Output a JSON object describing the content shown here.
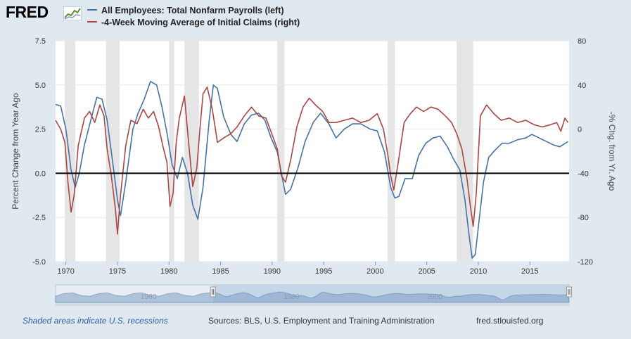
{
  "brand": {
    "name": "FRED"
  },
  "colors": {
    "series1": "#4572a7",
    "series2": "#aa4643",
    "plot_bg": "#ffffff",
    "page_bg": "#e1e9f0",
    "recession": "#e5e5e5"
  },
  "footer": {
    "note": "Shaded areas indicate U.S. recessions",
    "sources": "Sources: BLS, U.S. Employment and Training Administration",
    "url": "fred.stlouisfed.org"
  },
  "chart_data": {
    "type": "line",
    "title": "",
    "xlabel": "",
    "ylabel": "Percent Change from Year Ago",
    "y2label": "-% Chg. from Yr. Ago",
    "xlim": [
      1969,
      2018.8
    ],
    "ylim": [
      -5.0,
      7.5
    ],
    "y2lim": [
      -120,
      80
    ],
    "yticks": [
      "7.5",
      "5.0",
      "2.5",
      "0.0",
      "-2.5",
      "-5.0"
    ],
    "yticks_right": [
      "80",
      "40",
      "0",
      "-40",
      "-80",
      "-120"
    ],
    "xticks": [
      "1970",
      "1975",
      "1980",
      "1985",
      "1990",
      "1995",
      "2000",
      "2005",
      "2010",
      "2015"
    ],
    "navigator_labels": [
      "1960",
      "1980",
      "2000"
    ],
    "recessions": [
      [
        1969.9,
        1970.9
      ],
      [
        1973.9,
        1975.2
      ],
      [
        1980.0,
        1980.5
      ],
      [
        1981.5,
        1982.9
      ],
      [
        1990.5,
        1991.2
      ],
      [
        2001.2,
        2001.9
      ],
      [
        2007.9,
        2009.5
      ]
    ],
    "zero_line": 0,
    "series": [
      {
        "name": "All Employees: Total Nonfarm Payrolls (left)",
        "axis": "left",
        "x": [
          1969.0,
          1969.5,
          1970.0,
          1970.5,
          1970.9,
          1971.3,
          1971.8,
          1972.5,
          1973.0,
          1973.5,
          1974.0,
          1974.5,
          1975.0,
          1975.3,
          1975.8,
          1976.5,
          1977.0,
          1977.6,
          1978.2,
          1978.8,
          1979.3,
          1979.8,
          1980.3,
          1980.8,
          1981.3,
          1981.8,
          1982.3,
          1982.8,
          1983.3,
          1983.9,
          1984.3,
          1984.7,
          1985.3,
          1986.0,
          1986.6,
          1987.3,
          1988.0,
          1988.7,
          1989.3,
          1989.9,
          1990.5,
          1990.9,
          1991.3,
          1991.8,
          1992.5,
          1993.2,
          1994.0,
          1994.7,
          1995.5,
          1996.2,
          1997.0,
          1997.8,
          1998.6,
          1999.5,
          2000.2,
          2000.9,
          2001.5,
          2001.9,
          2002.3,
          2002.9,
          2003.6,
          2004.2,
          2004.9,
          2005.6,
          2006.3,
          2007.0,
          2007.6,
          2008.2,
          2008.7,
          2009.1,
          2009.4,
          2009.7,
          2010.1,
          2010.5,
          2011.0,
          2011.6,
          2012.3,
          2013.0,
          2013.8,
          2014.6,
          2015.2,
          2015.9,
          2016.6,
          2017.3,
          2017.9,
          2018.7
        ],
        "values": [
          3.9,
          3.8,
          2.5,
          0.2,
          -0.8,
          0.0,
          1.6,
          3.2,
          4.3,
          4.2,
          3.0,
          0.8,
          -1.5,
          -2.4,
          -0.5,
          2.5,
          3.4,
          4.2,
          5.2,
          5.0,
          3.8,
          2.3,
          0.5,
          -0.3,
          0.9,
          0.0,
          -1.8,
          -2.6,
          -0.8,
          3.0,
          5.0,
          4.8,
          3.2,
          2.2,
          1.8,
          2.8,
          3.3,
          3.4,
          3.0,
          2.0,
          1.2,
          0.0,
          -1.2,
          -0.9,
          0.3,
          1.8,
          2.9,
          3.4,
          2.8,
          2.0,
          2.5,
          2.8,
          2.8,
          2.5,
          2.4,
          1.2,
          -0.8,
          -1.4,
          -1.3,
          -0.3,
          -0.3,
          1.0,
          1.7,
          2.0,
          2.1,
          1.5,
          0.8,
          0.2,
          -1.5,
          -3.5,
          -4.8,
          -4.6,
          -2.5,
          -0.5,
          0.9,
          1.3,
          1.7,
          1.7,
          1.9,
          2.0,
          2.2,
          2.0,
          1.8,
          1.6,
          1.5,
          1.8
        ]
      },
      {
        "name": "-4-Week Moving Average of Initial Claims (right)",
        "axis": "right",
        "x": [
          1969.0,
          1969.5,
          1969.9,
          1970.2,
          1970.5,
          1970.8,
          1971.2,
          1971.8,
          1972.3,
          1972.8,
          1973.3,
          1973.7,
          1974.0,
          1974.4,
          1974.8,
          1975.0,
          1975.3,
          1975.8,
          1976.3,
          1976.9,
          1977.5,
          1978.0,
          1978.5,
          1979.0,
          1979.4,
          1979.8,
          1980.1,
          1980.4,
          1980.7,
          1981.0,
          1981.5,
          1981.9,
          1982.3,
          1982.7,
          1983.0,
          1983.3,
          1983.7,
          1984.2,
          1984.7,
          1985.3,
          1986.0,
          1986.6,
          1987.3,
          1988.0,
          1988.7,
          1989.4,
          1990.0,
          1990.5,
          1990.9,
          1991.3,
          1991.8,
          1992.4,
          1993.0,
          1993.6,
          1994.2,
          1994.9,
          1995.5,
          1996.2,
          1997.0,
          1997.8,
          1998.6,
          1999.4,
          2000.2,
          2000.8,
          2001.2,
          2001.5,
          2001.8,
          2002.2,
          2002.8,
          2003.4,
          2004.0,
          2004.7,
          2005.4,
          2006.1,
          2006.8,
          2007.4,
          2007.9,
          2008.4,
          2008.9,
          2009.2,
          2009.5,
          2009.8,
          2010.2,
          2010.8,
          2011.5,
          2012.2,
          2013.0,
          2013.8,
          2014.6,
          2015.4,
          2016.2,
          2017.0,
          2017.6,
          2018.0,
          2018.4,
          2018.7
        ],
        "values": [
          8,
          0,
          -12,
          -48,
          -75,
          -60,
          -15,
          10,
          16,
          6,
          22,
          12,
          -18,
          -42,
          -72,
          -95,
          -60,
          -15,
          8,
          5,
          18,
          10,
          16,
          2,
          -15,
          -30,
          -70,
          -58,
          -12,
          10,
          30,
          -12,
          -52,
          -35,
          0,
          32,
          38,
          18,
          -12,
          -8,
          -4,
          2,
          12,
          20,
          12,
          10,
          -5,
          -18,
          -42,
          -48,
          -28,
          2,
          20,
          28,
          22,
          16,
          6,
          6,
          8,
          10,
          6,
          8,
          14,
          0,
          -22,
          -42,
          -55,
          -32,
          6,
          14,
          20,
          16,
          20,
          18,
          12,
          6,
          -4,
          -18,
          -45,
          -68,
          -88,
          -58,
          12,
          22,
          14,
          8,
          10,
          6,
          8,
          4,
          2,
          4,
          6,
          -2,
          10,
          6
        ]
      }
    ]
  }
}
